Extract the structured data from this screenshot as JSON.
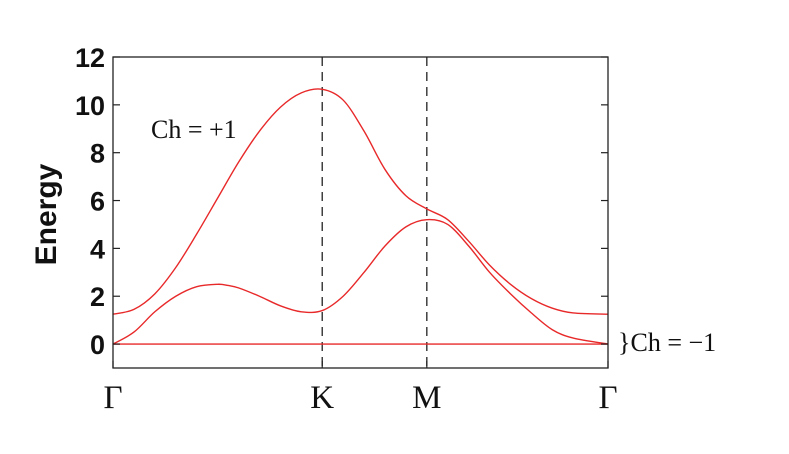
{
  "chart_data": {
    "type": "line",
    "title": "",
    "xlabel": "",
    "ylabel": "Energy",
    "ylim": [
      -1,
      12
    ],
    "yticks": [
      0,
      2,
      4,
      6,
      8,
      10,
      12
    ],
    "x_ticks": [
      {
        "label": "Γ",
        "x": 0
      },
      {
        "label": "K",
        "x": 1
      },
      {
        "label": "M",
        "x": 1.5
      },
      {
        "label": "Γ",
        "x": 2.366
      }
    ],
    "vlines": [
      1,
      1.5
    ],
    "series": [
      {
        "x": [
          0,
          0.1,
          0.2,
          0.3,
          0.4,
          0.5,
          0.6,
          0.7,
          0.8,
          0.9,
          1.0,
          1.1,
          1.2,
          1.3,
          1.4,
          1.5,
          1.6,
          1.7,
          1.8,
          1.9,
          2.0,
          2.1,
          2.2,
          2.366
        ],
        "values": [
          1.25,
          1.45,
          2.1,
          3.2,
          4.6,
          6.1,
          7.6,
          8.9,
          9.9,
          10.5,
          10.65,
          10.2,
          8.9,
          7.3,
          6.2,
          5.65,
          5.2,
          4.3,
          3.3,
          2.5,
          1.9,
          1.5,
          1.3,
          1.25
        ]
      },
      {
        "x": [
          0,
          0.1,
          0.2,
          0.3,
          0.4,
          0.5,
          0.55,
          0.6,
          0.7,
          0.8,
          0.9,
          1.0,
          1.1,
          1.2,
          1.3,
          1.4,
          1.5,
          1.6,
          1.7,
          1.8,
          1.9,
          2.0,
          2.1,
          2.2,
          2.366
        ],
        "values": [
          0,
          0.5,
          1.35,
          2.0,
          2.4,
          2.5,
          2.45,
          2.35,
          2.0,
          1.6,
          1.35,
          1.4,
          2.0,
          3.0,
          4.1,
          4.9,
          5.2,
          5.0,
          4.1,
          3.0,
          2.1,
          1.3,
          0.6,
          0.25,
          0
        ]
      },
      {
        "x": [
          0,
          2.366
        ],
        "values": [
          0,
          0
        ]
      }
    ],
    "annotations": [
      "Ch = +1",
      "}Ch = −1"
    ],
    "line_color": "#e8292a",
    "vline_color": "#222222"
  }
}
